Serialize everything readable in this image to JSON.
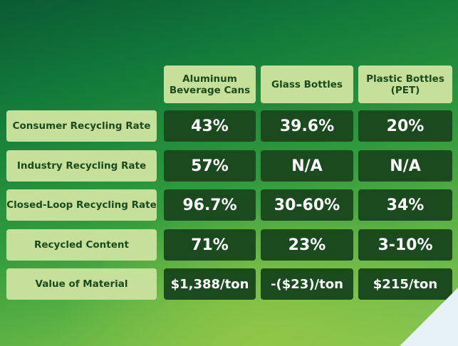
{
  "chart_data": {
    "type": "table",
    "columns": [
      "Aluminum Beverage Cans",
      "Glass Bottles",
      "Plastic Bottles (PET)"
    ],
    "column_labels": [
      [
        "Aluminum",
        "Beverage Cans"
      ],
      [
        "Glass Bottles"
      ],
      [
        "Plastic Bottles",
        "(PET)"
      ]
    ],
    "rows": [
      {
        "label": "Consumer Recycling Rate",
        "values": [
          "43%",
          "39.6%",
          "20%"
        ]
      },
      {
        "label": "Industry Recycling Rate",
        "values": [
          "57%",
          "N/A",
          "N/A"
        ]
      },
      {
        "label": "Closed-Loop Recycling Rate",
        "values": [
          "96.7%",
          "30-60%",
          "34%"
        ]
      },
      {
        "label": "Recycled Content",
        "values": [
          "71%",
          "23%",
          "3-10%"
        ]
      },
      {
        "label": "Value of Material",
        "values": [
          "$1,388/ton",
          "-($23)/ton",
          "$215/ton"
        ]
      }
    ]
  },
  "colors": {
    "header_bg": "#c6e09b",
    "cell_bg": "#1b4a1f",
    "label_text": "#1b4a1a",
    "value_text": "#ffffff"
  }
}
